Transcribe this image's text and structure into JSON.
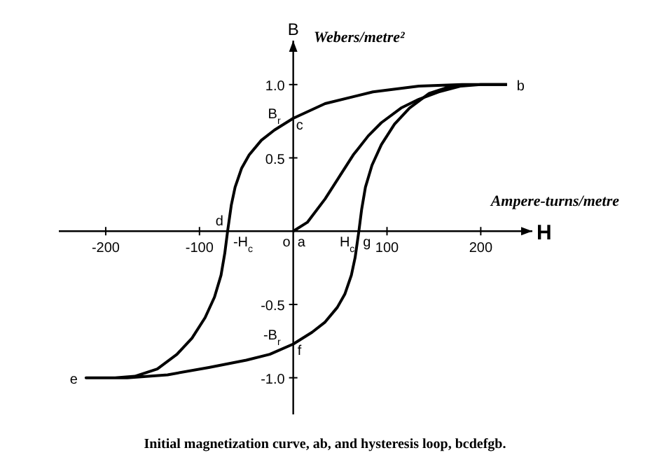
{
  "chart_data": {
    "type": "line",
    "xlabel": "H",
    "ylabel": "B",
    "xlim": [
      -250,
      255
    ],
    "ylim": [
      -1.25,
      1.3
    ],
    "xticks": [
      -200,
      -100,
      100,
      200
    ],
    "yticks": [
      {
        "value": 1,
        "label": "1.0"
      },
      0.5,
      -0.5,
      {
        "value": -1,
        "label": "-1.0"
      }
    ],
    "series": [
      {
        "color": "#000000",
        "x": [
          0,
          15,
          34,
          50,
          64,
          80,
          94,
          115,
          134,
          155,
          179,
          200,
          228
        ],
        "values": [
          0,
          0.06,
          0.22,
          0.38,
          0.52,
          0.65,
          0.74,
          0.84,
          0.9,
          0.95,
          0.99,
          1.0,
          1.0
        ]
      },
      {
        "color": "#000000",
        "x": [
          228,
          180,
          134,
          85,
          34,
          0,
          -20,
          -34,
          -47,
          -55,
          -62,
          -66,
          -70,
          -73,
          -77,
          -84,
          -94,
          -108,
          -124,
          -145,
          -169,
          -190,
          -221,
          -177,
          -134,
          -90,
          -50,
          -25,
          0,
          20,
          34,
          47,
          55,
          62,
          66,
          70,
          73,
          77,
          84,
          94,
          108,
          124,
          145,
          169,
          190
        ],
        "values": [
          1.0,
          1.0,
          0.99,
          0.95,
          0.87,
          0.77,
          0.69,
          0.62,
          0.52,
          0.43,
          0.3,
          0.18,
          0,
          -0.15,
          -0.3,
          -0.45,
          -0.59,
          -0.73,
          -0.84,
          -0.94,
          -0.99,
          -1.0,
          -1.0,
          -1.0,
          -0.98,
          -0.93,
          -0.88,
          -0.84,
          -0.77,
          -0.69,
          -0.62,
          -0.52,
          -0.43,
          -0.3,
          -0.18,
          0,
          0.15,
          0.3,
          0.45,
          0.59,
          0.73,
          0.84,
          0.94,
          0.99,
          1.0
        ]
      }
    ],
    "annotations": [
      "Webers/metre²",
      "Ampere-turns/metre",
      "Initial magnetization curve, ab, and hysteresis loop, bcdefgb.",
      {
        "text": "b",
        "x": 228,
        "y": 1.0
      },
      {
        "text": "c",
        "x": 0,
        "y": 0.77
      },
      {
        "text": "B$_{r}$",
        "x": 0,
        "y": 0.77
      },
      {
        "text": "d",
        "x": -70,
        "y": 0
      },
      {
        "text": "-H$_{c}$",
        "x": -70,
        "y": 0
      },
      {
        "text": "o",
        "x": 0,
        "y": 0
      },
      {
        "text": "a",
        "x": 0,
        "y": 0
      },
      {
        "text": "H$_{c}$",
        "x": 70,
        "y": 0
      },
      {
        "text": "g",
        "x": 70,
        "y": 0
      },
      {
        "text": "e",
        "x": -221,
        "y": -1.0
      },
      {
        "text": "f",
        "x": 0,
        "y": -0.77
      },
      {
        "text": "-B$_{r}$",
        "x": 0,
        "y": -0.77
      }
    ]
  }
}
